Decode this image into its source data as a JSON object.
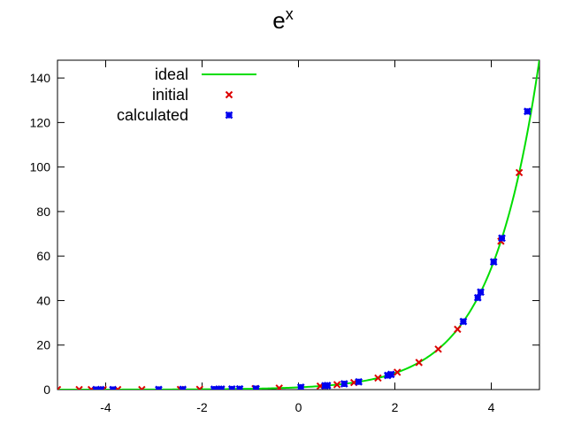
{
  "chart_data": {
    "type": "line",
    "title": "e",
    "title_superscript": "x",
    "xlabel": "",
    "ylabel": "",
    "xlim": [
      -5,
      5
    ],
    "ylim": [
      0,
      148
    ],
    "x_ticks": [
      -4,
      -2,
      0,
      2,
      4
    ],
    "y_ticks": [
      0,
      20,
      40,
      60,
      80,
      100,
      120,
      140
    ],
    "grid": false,
    "legend_position": "top-left",
    "series": [
      {
        "name": "ideal",
        "kind": "line",
        "color": "#00dd00",
        "function": "exp",
        "x_range": [
          -5,
          5
        ]
      },
      {
        "name": "initial",
        "kind": "scatter",
        "marker": "x",
        "color": "#dd0000",
        "points": [
          [
            -5.0,
            0.01
          ],
          [
            -4.55,
            0.01
          ],
          [
            -4.3,
            0.01
          ],
          [
            -4.05,
            0.02
          ],
          [
            -3.75,
            0.02
          ],
          [
            -3.25,
            0.04
          ],
          [
            -2.45,
            0.09
          ],
          [
            -2.05,
            0.13
          ],
          [
            -1.6,
            0.2
          ],
          [
            -0.9,
            0.41
          ],
          [
            -0.4,
            0.67
          ],
          [
            0.45,
            1.57
          ],
          [
            0.8,
            2.23
          ],
          [
            1.15,
            3.16
          ],
          [
            1.65,
            5.21
          ],
          [
            2.05,
            7.77
          ],
          [
            2.5,
            12.18
          ],
          [
            2.9,
            18.17
          ],
          [
            3.3,
            27.11
          ],
          [
            4.2,
            66.69
          ],
          [
            4.58,
            97.5
          ]
        ]
      },
      {
        "name": "calculated",
        "kind": "scatter",
        "marker": "cross",
        "color": "#0000ee",
        "points": [
          [
            -4.2,
            0.01
          ],
          [
            -4.1,
            0.02
          ],
          [
            -3.85,
            0.02
          ],
          [
            -2.9,
            0.06
          ],
          [
            -2.4,
            0.09
          ],
          [
            -1.75,
            0.17
          ],
          [
            -1.65,
            0.19
          ],
          [
            -1.6,
            0.2
          ],
          [
            -1.38,
            0.25
          ],
          [
            -1.22,
            0.3
          ],
          [
            -0.88,
            0.41
          ],
          [
            0.05,
            1.05
          ],
          [
            0.55,
            1.73
          ],
          [
            0.6,
            1.82
          ],
          [
            0.95,
            2.59
          ],
          [
            1.25,
            3.49
          ],
          [
            1.85,
            6.36
          ],
          [
            1.92,
            6.82
          ],
          [
            3.42,
            30.57
          ],
          [
            3.72,
            41.26
          ],
          [
            3.78,
            43.82
          ],
          [
            4.05,
            57.4
          ],
          [
            4.22,
            68.03
          ],
          [
            4.75,
            125.0
          ]
        ]
      }
    ]
  }
}
